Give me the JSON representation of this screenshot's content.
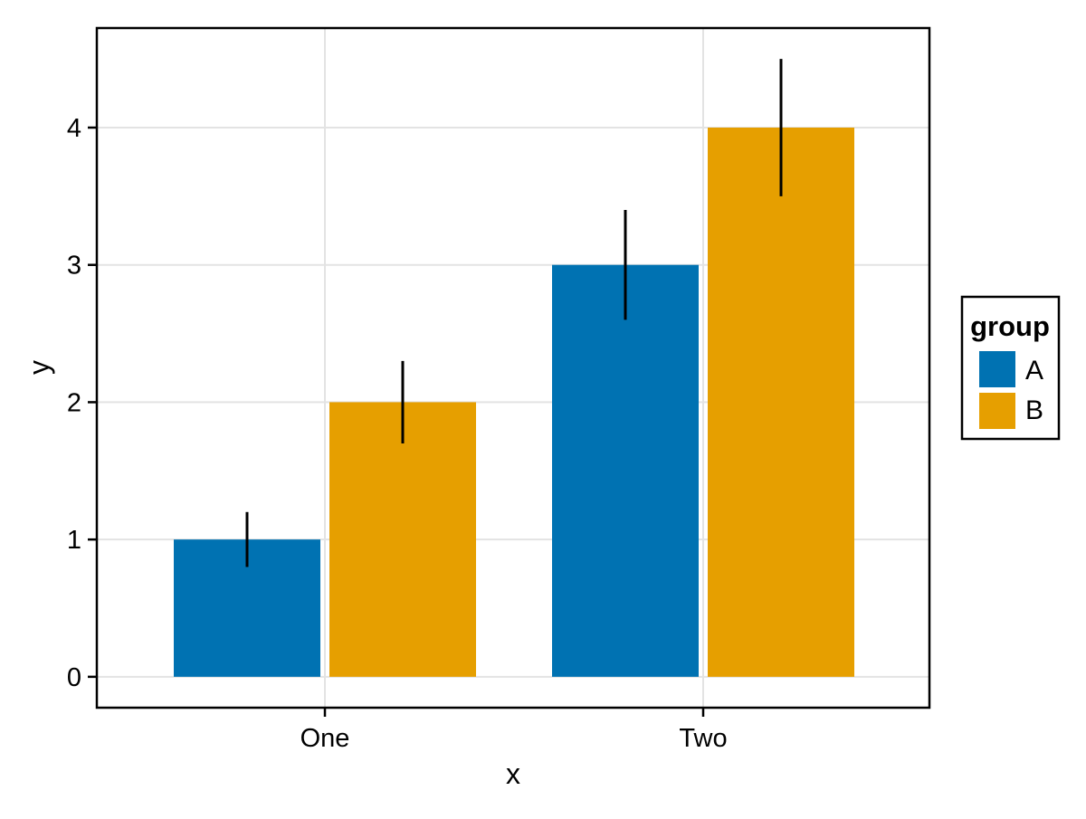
{
  "chart_data": {
    "type": "bar",
    "title": "",
    "xlabel": "x",
    "ylabel": "y",
    "categories": [
      "One",
      "Two"
    ],
    "series": [
      {
        "name": "A",
        "color": "#0072B2",
        "values": [
          1,
          3
        ],
        "error_low": [
          0.8,
          2.6
        ],
        "error_high": [
          1.2,
          3.4
        ]
      },
      {
        "name": "B",
        "color": "#E69F00",
        "values": [
          2,
          4
        ],
        "error_low": [
          1.7,
          3.5
        ],
        "error_high": [
          2.3,
          4.5
        ]
      }
    ],
    "y_ticks": [
      "0",
      "1",
      "2",
      "3",
      "4"
    ],
    "y_tick_values": [
      0,
      1,
      2,
      3,
      4
    ],
    "ylim": [
      -0.225,
      4.725
    ],
    "grid": "major",
    "legend": {
      "title": "group",
      "position": "right"
    },
    "style": {
      "background": "#ffffff",
      "gridline_color": "#e3e3e3",
      "axis_color": "#000000",
      "errorbar_color": "#000000"
    }
  }
}
